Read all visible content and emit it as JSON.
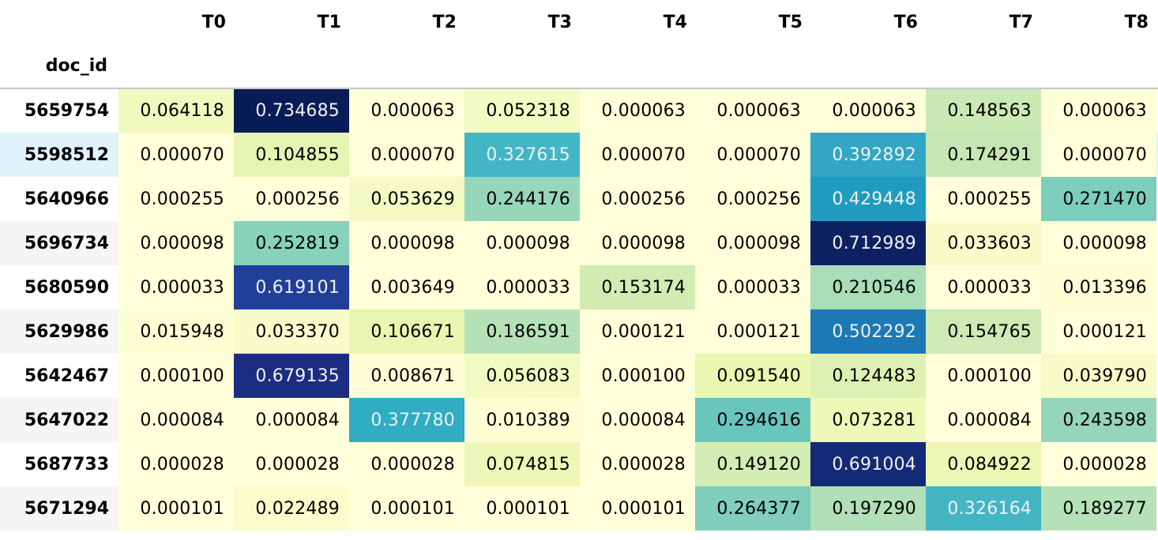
{
  "index_name": "doc_id",
  "columns": [
    "T0",
    "T1",
    "T2",
    "T3",
    "T4",
    "T5",
    "T6",
    "T7",
    "T8"
  ],
  "hovered_row": 1,
  "colormap": "YlGnBu",
  "rows": [
    {
      "doc_id": "5659754",
      "values": [
        "0.064118",
        "0.734685",
        "0.000063",
        "0.052318",
        "0.000063",
        "0.000063",
        "0.000063",
        "0.148563",
        "0.000063"
      ],
      "colors": [
        "#f1f9be",
        "#081d58",
        "#ffffd9",
        "#f3fac3",
        "#ffffd9",
        "#ffffd9",
        "#ffffd9",
        "#cbe9b4",
        "#ffffd9"
      ]
    },
    {
      "doc_id": "5598512",
      "values": [
        "0.000070",
        "0.104855",
        "0.000070",
        "0.327615",
        "0.000070",
        "0.000070",
        "0.392892",
        "0.174291",
        "0.000070"
      ],
      "colors": [
        "#ffffd9",
        "#e4f4b2",
        "#ffffd9",
        "#42b6c4",
        "#ffffd9",
        "#ffffd9",
        "#32a6c4",
        "#c6e7b4",
        "#ffffd9"
      ]
    },
    {
      "doc_id": "5640966",
      "values": [
        "0.000255",
        "0.000256",
        "0.053629",
        "0.244176",
        "0.000256",
        "0.000256",
        "0.429448",
        "0.000255",
        "0.271470"
      ],
      "colors": [
        "#ffffd9",
        "#ffffd9",
        "#f3fac3",
        "#97d6b8",
        "#ffffd9",
        "#ffffd9",
        "#1f9bc0",
        "#ffffd9",
        "#7ccdbb"
      ]
    },
    {
      "doc_id": "5696734",
      "values": [
        "0.000098",
        "0.252819",
        "0.000098",
        "0.000098",
        "0.000098",
        "0.000098",
        "0.712989",
        "0.033603",
        "0.000098"
      ],
      "colors": [
        "#ffffd9",
        "#87d2ba",
        "#ffffd9",
        "#ffffd9",
        "#ffffd9",
        "#ffffd9",
        "#0d2162",
        "#f7fcca",
        "#ffffd9"
      ]
    },
    {
      "doc_id": "5680590",
      "values": [
        "0.000033",
        "0.619101",
        "0.003649",
        "0.000033",
        "0.153174",
        "0.000033",
        "0.210546",
        "0.000033",
        "0.013396"
      ],
      "colors": [
        "#ffffd9",
        "#213f98",
        "#ffffd9",
        "#ffffd9",
        "#d1ebb3",
        "#ffffd9",
        "#a9ddb7",
        "#ffffd9",
        "#fdfed4"
      ]
    },
    {
      "doc_id": "5629986",
      "values": [
        "0.015948",
        "0.033370",
        "0.106671",
        "0.186591",
        "0.000121",
        "0.000121",
        "0.502292",
        "0.154765",
        "0.000121"
      ],
      "colors": [
        "#fcfed3",
        "#f7fcca",
        "#e8f6b1",
        "#b5e1b6",
        "#ffffd9",
        "#ffffd9",
        "#1d79b5",
        "#cfeab4",
        "#ffffd9"
      ]
    },
    {
      "doc_id": "5642467",
      "values": [
        "0.000100",
        "0.679135",
        "0.008671",
        "0.056083",
        "0.000100",
        "0.091540",
        "0.124483",
        "0.000100",
        "0.039790"
      ],
      "colors": [
        "#ffffd9",
        "#1b2d82",
        "#fefed6",
        "#f2fac2",
        "#ffffd9",
        "#e9f7b1",
        "#ddf2b2",
        "#ffffd9",
        "#f6fbc7"
      ]
    },
    {
      "doc_id": "5647022",
      "values": [
        "0.000084",
        "0.000084",
        "0.377780",
        "0.010389",
        "0.000084",
        "0.294616",
        "0.073281",
        "0.000084",
        "0.243598"
      ],
      "colors": [
        "#ffffd9",
        "#ffffd9",
        "#30acc3",
        "#fefed5",
        "#ffffd9",
        "#69c6bd",
        "#eef8b7",
        "#ffffd9",
        "#95d5b9"
      ]
    },
    {
      "doc_id": "5687733",
      "values": [
        "0.000028",
        "0.000028",
        "0.000028",
        "0.074815",
        "0.000028",
        "0.149120",
        "0.691004",
        "0.084922",
        "0.000028"
      ],
      "colors": [
        "#ffffd9",
        "#ffffd9",
        "#ffffd9",
        "#edf8b8",
        "#ffffd9",
        "#d3ecb3",
        "#142a76",
        "#ecf7b3",
        "#ffffd9"
      ]
    },
    {
      "doc_id": "5671294",
      "values": [
        "0.000101",
        "0.022489",
        "0.000101",
        "0.000101",
        "0.000101",
        "0.264377",
        "0.197290",
        "0.326164",
        "0.189277"
      ],
      "colors": [
        "#ffffd9",
        "#f9fdcc",
        "#ffffd9",
        "#ffffd9",
        "#ffffd9",
        "#80cebb",
        "#b1dfb7",
        "#44b5c3",
        "#b5e1b7"
      ]
    }
  ]
}
